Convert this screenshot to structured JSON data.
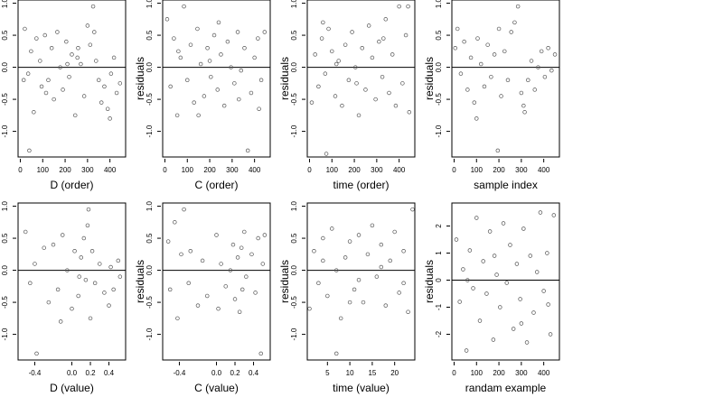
{
  "chart_data": [
    {
      "type": "scatter",
      "xlabel": "D (order)",
      "ylabel": "residuals",
      "xlim": [
        -10,
        470
      ],
      "ylim": [
        -1.4,
        1.05
      ],
      "xticks": [
        0,
        100,
        200,
        300,
        400
      ],
      "xtick_labels": [
        "0",
        "100",
        "200",
        "300",
        "400"
      ],
      "yticks": [
        -1.0,
        -0.5,
        0.0,
        0.5,
        1.0
      ],
      "ytick_labels": [
        "-1.0",
        "-0.5",
        "0.0",
        "0.5",
        "1.0"
      ],
      "hline": 0,
      "grid": false,
      "points": [
        [
          20,
          0.6
        ],
        [
          35,
          -0.1
        ],
        [
          48,
          0.25
        ],
        [
          60,
          -0.7
        ],
        [
          72,
          0.45
        ],
        [
          88,
          0.1
        ],
        [
          95,
          -0.3
        ],
        [
          110,
          0.5
        ],
        [
          125,
          -0.2
        ],
        [
          140,
          0.3
        ],
        [
          150,
          -0.5
        ],
        [
          165,
          0.55
        ],
        [
          178,
          0.0
        ],
        [
          190,
          -0.35
        ],
        [
          205,
          0.4
        ],
        [
          218,
          -0.15
        ],
        [
          230,
          0.2
        ],
        [
          245,
          -0.75
        ],
        [
          258,
          0.3
        ],
        [
          270,
          0.05
        ],
        [
          285,
          -0.45
        ],
        [
          300,
          0.65
        ],
        [
          312,
          0.35
        ],
        [
          325,
          0.95
        ],
        [
          338,
          0.1
        ],
        [
          350,
          -0.2
        ],
        [
          362,
          -0.55
        ],
        [
          375,
          -0.3
        ],
        [
          390,
          -0.65
        ],
        [
          405,
          -0.1
        ],
        [
          418,
          0.15
        ],
        [
          430,
          -0.4
        ],
        [
          445,
          -0.25
        ],
        [
          40,
          -1.3
        ],
        [
          15,
          -0.2
        ],
        [
          115,
          -0.4
        ],
        [
          210,
          0.05
        ],
        [
          330,
          0.55
        ],
        [
          400,
          -0.8
        ],
        [
          255,
          0.15
        ]
      ]
    },
    {
      "type": "scatter",
      "xlabel": "C (order)",
      "ylabel": "residuals",
      "xlim": [
        -10,
        470
      ],
      "ylim": [
        -1.4,
        1.05
      ],
      "xticks": [
        0,
        100,
        200,
        300,
        400
      ],
      "xtick_labels": [
        "0",
        "100",
        "200",
        "300",
        "400"
      ],
      "yticks": [
        -1.0,
        -0.5,
        0.0,
        0.5,
        1.0
      ],
      "ytick_labels": [
        "-1.0",
        "-0.5",
        "0.0",
        "0.5",
        "1.0"
      ],
      "hline": 0,
      "grid": false,
      "points": [
        [
          10,
          0.75
        ],
        [
          25,
          -0.3
        ],
        [
          40,
          0.45
        ],
        [
          55,
          -0.75
        ],
        [
          70,
          0.15
        ],
        [
          85,
          0.95
        ],
        [
          100,
          -0.2
        ],
        [
          115,
          0.35
        ],
        [
          130,
          -0.55
        ],
        [
          145,
          0.6
        ],
        [
          160,
          0.05
        ],
        [
          175,
          -0.45
        ],
        [
          190,
          0.3
        ],
        [
          205,
          -0.15
        ],
        [
          220,
          0.5
        ],
        [
          235,
          -0.35
        ],
        [
          250,
          0.2
        ],
        [
          265,
          -0.6
        ],
        [
          280,
          0.4
        ],
        [
          295,
          0.0
        ],
        [
          310,
          -0.25
        ],
        [
          325,
          0.55
        ],
        [
          340,
          -0.05
        ],
        [
          355,
          0.3
        ],
        [
          370,
          -1.3
        ],
        [
          385,
          -0.4
        ],
        [
          400,
          0.15
        ],
        [
          415,
          0.45
        ],
        [
          430,
          -0.2
        ],
        [
          445,
          0.55
        ],
        [
          60,
          0.25
        ],
        [
          150,
          -0.75
        ],
        [
          240,
          0.7
        ],
        [
          330,
          -0.5
        ],
        [
          420,
          -0.65
        ],
        [
          200,
          0.1
        ]
      ]
    },
    {
      "type": "scatter",
      "xlabel": "time (order)",
      "ylabel": "residuals",
      "xlim": [
        -10,
        470
      ],
      "ylim": [
        -1.4,
        1.05
      ],
      "xticks": [
        0,
        100,
        200,
        300,
        400
      ],
      "xtick_labels": [
        "0",
        "100",
        "200",
        "300",
        "400"
      ],
      "yticks": [
        -1.0,
        -0.5,
        0.0,
        0.5,
        1.0
      ],
      "ytick_labels": [
        "-1.0",
        "-0.5",
        "0.0",
        "0.5",
        "1.0"
      ],
      "hline": 0,
      "grid": false,
      "points": [
        [
          10,
          -0.55
        ],
        [
          25,
          0.2
        ],
        [
          40,
          -0.3
        ],
        [
          55,
          0.45
        ],
        [
          70,
          -0.1
        ],
        [
          85,
          0.6
        ],
        [
          100,
          0.25
        ],
        [
          115,
          -0.45
        ],
        [
          130,
          0.1
        ],
        [
          145,
          -0.6
        ],
        [
          160,
          0.35
        ],
        [
          175,
          -0.2
        ],
        [
          190,
          0.55
        ],
        [
          205,
          0.0
        ],
        [
          220,
          -0.75
        ],
        [
          235,
          0.3
        ],
        [
          250,
          -0.35
        ],
        [
          265,
          0.65
        ],
        [
          280,
          0.15
        ],
        [
          295,
          -0.5
        ],
        [
          310,
          0.4
        ],
        [
          325,
          -0.15
        ],
        [
          340,
          0.75
        ],
        [
          355,
          -0.4
        ],
        [
          370,
          0.2
        ],
        [
          385,
          -0.6
        ],
        [
          400,
          0.95
        ],
        [
          415,
          -0.25
        ],
        [
          430,
          0.5
        ],
        [
          445,
          -0.7
        ],
        [
          75,
          -1.35
        ],
        [
          60,
          0.7
        ],
        [
          210,
          -0.25
        ],
        [
          330,
          0.45
        ],
        [
          440,
          0.95
        ],
        [
          120,
          0.05
        ]
      ]
    },
    {
      "type": "scatter",
      "xlabel": "sample index",
      "ylabel": "residuals",
      "xlim": [
        -10,
        470
      ],
      "ylim": [
        -1.4,
        1.05
      ],
      "xticks": [
        0,
        100,
        200,
        300,
        400
      ],
      "xtick_labels": [
        "0",
        "100",
        "200",
        "300",
        "400"
      ],
      "yticks": [
        -1.0,
        -0.5,
        0.0,
        0.5,
        1.0
      ],
      "ytick_labels": [
        "-1.0",
        "-0.5",
        "0.0",
        "0.5",
        "1.0"
      ],
      "hline": 0,
      "grid": false,
      "points": [
        [
          5,
          0.3
        ],
        [
          15,
          0.6
        ],
        [
          30,
          -0.1
        ],
        [
          45,
          0.4
        ],
        [
          60,
          -0.35
        ],
        [
          75,
          0.15
        ],
        [
          90,
          -0.55
        ],
        [
          105,
          0.45
        ],
        [
          120,
          0.05
        ],
        [
          135,
          -0.3
        ],
        [
          150,
          0.35
        ],
        [
          165,
          -0.15
        ],
        [
          180,
          0.2
        ],
        [
          195,
          -1.3
        ],
        [
          210,
          -0.45
        ],
        [
          225,
          0.25
        ],
        [
          240,
          -0.2
        ],
        [
          255,
          0.55
        ],
        [
          270,
          0.7
        ],
        [
          285,
          0.95
        ],
        [
          300,
          -0.4
        ],
        [
          315,
          -0.7
        ],
        [
          330,
          -0.2
        ],
        [
          345,
          0.1
        ],
        [
          360,
          -0.35
        ],
        [
          375,
          0.0
        ],
        [
          390,
          0.25
        ],
        [
          405,
          -0.15
        ],
        [
          420,
          0.3
        ],
        [
          435,
          -0.05
        ],
        [
          450,
          0.2
        ],
        [
          100,
          -0.8
        ],
        [
          200,
          0.6
        ],
        [
          310,
          -0.6
        ]
      ]
    },
    {
      "type": "scatter",
      "xlabel": "D (value)",
      "ylabel": "residuals",
      "xlim": [
        -0.58,
        0.58
      ],
      "ylim": [
        -1.4,
        1.05
      ],
      "xticks": [
        -0.4,
        0.0,
        0.2,
        0.4
      ],
      "xtick_labels": [
        "-0.4",
        "0.0",
        "0.2",
        "0.4"
      ],
      "yticks": [
        -1.0,
        -0.5,
        0.0,
        0.5,
        1.0
      ],
      "ytick_labels": [
        "-1.0",
        "-0.5",
        "0.0",
        "0.5",
        "1.0"
      ],
      "hline": 0,
      "grid": false,
      "points": [
        [
          -0.5,
          0.6
        ],
        [
          -0.45,
          -0.2
        ],
        [
          -0.4,
          0.1
        ],
        [
          -0.38,
          -1.3
        ],
        [
          -0.3,
          0.35
        ],
        [
          -0.25,
          -0.5
        ],
        [
          -0.2,
          0.4
        ],
        [
          -0.15,
          -0.3
        ],
        [
          -0.1,
          0.55
        ],
        [
          -0.05,
          0.0
        ],
        [
          0.0,
          -0.6
        ],
        [
          0.03,
          0.3
        ],
        [
          0.07,
          -0.4
        ],
        [
          0.1,
          0.2
        ],
        [
          0.13,
          0.5
        ],
        [
          0.15,
          -0.15
        ],
        [
          0.17,
          0.7
        ],
        [
          0.18,
          0.95
        ],
        [
          0.2,
          -0.75
        ],
        [
          0.22,
          0.3
        ],
        [
          0.25,
          -0.2
        ],
        [
          0.3,
          0.1
        ],
        [
          0.35,
          -0.35
        ],
        [
          0.4,
          -0.55
        ],
        [
          0.42,
          0.05
        ],
        [
          0.45,
          -0.3
        ],
        [
          0.5,
          0.15
        ],
        [
          0.52,
          -0.1
        ],
        [
          -0.12,
          -0.8
        ],
        [
          0.08,
          -0.1
        ]
      ]
    },
    {
      "type": "scatter",
      "xlabel": "C (value)",
      "ylabel": "residuals",
      "xlim": [
        -0.58,
        0.58
      ],
      "ylim": [
        -1.4,
        1.05
      ],
      "xticks": [
        -0.4,
        0.0,
        0.2,
        0.4
      ],
      "xtick_labels": [
        "-0.4",
        "0.0",
        "0.2",
        "0.4"
      ],
      "yticks": [
        -1.0,
        -0.5,
        0.0,
        0.5,
        1.0
      ],
      "ytick_labels": [
        "-1.0",
        "-0.5",
        "0.0",
        "0.5",
        "1.0"
      ],
      "hline": 0,
      "grid": false,
      "points": [
        [
          -0.52,
          0.45
        ],
        [
          -0.5,
          -0.3
        ],
        [
          -0.45,
          0.75
        ],
        [
          -0.42,
          -0.75
        ],
        [
          -0.35,
          0.95
        ],
        [
          -0.3,
          -0.2
        ],
        [
          -0.28,
          0.3
        ],
        [
          -0.2,
          -0.55
        ],
        [
          -0.15,
          0.15
        ],
        [
          -0.1,
          -0.4
        ],
        [
          0.0,
          0.55
        ],
        [
          0.02,
          -0.6
        ],
        [
          0.05,
          0.1
        ],
        [
          0.1,
          -0.25
        ],
        [
          0.18,
          0.4
        ],
        [
          0.2,
          -0.45
        ],
        [
          0.23,
          0.2
        ],
        [
          0.25,
          -0.65
        ],
        [
          0.27,
          0.35
        ],
        [
          0.3,
          0.6
        ],
        [
          0.32,
          -0.1
        ],
        [
          0.38,
          0.25
        ],
        [
          0.42,
          -0.35
        ],
        [
          0.45,
          0.5
        ],
        [
          0.48,
          -1.3
        ],
        [
          0.5,
          0.1
        ],
        [
          0.52,
          0.55
        ],
        [
          -0.38,
          0.25
        ],
        [
          0.15,
          0.0
        ],
        [
          0.28,
          -0.3
        ]
      ]
    },
    {
      "type": "scatter",
      "xlabel": "time (value)",
      "ylabel": "residuals",
      "xlim": [
        0.5,
        24.5
      ],
      "ylim": [
        -1.4,
        1.05
      ],
      "xticks": [
        5,
        10,
        15,
        20
      ],
      "xtick_labels": [
        "5",
        "10",
        "15",
        "20"
      ],
      "yticks": [
        -1.0,
        -0.5,
        0.0,
        0.5,
        1.0
      ],
      "ytick_labels": [
        "-1.0",
        "-0.5",
        "0.0",
        "0.5",
        "1.0"
      ],
      "hline": 0,
      "grid": false,
      "points": [
        [
          1,
          -0.6
        ],
        [
          2,
          0.3
        ],
        [
          3,
          -0.2
        ],
        [
          4,
          0.5
        ],
        [
          5,
          -0.4
        ],
        [
          6,
          0.65
        ],
        [
          7,
          0.0
        ],
        [
          8,
          -0.75
        ],
        [
          9,
          0.2
        ],
        [
          10,
          0.45
        ],
        [
          11,
          -0.3
        ],
        [
          12,
          0.55
        ],
        [
          13,
          -0.5
        ],
        [
          14,
          0.25
        ],
        [
          15,
          0.7
        ],
        [
          16,
          -0.1
        ],
        [
          17,
          0.4
        ],
        [
          18,
          -0.55
        ],
        [
          19,
          0.15
        ],
        [
          20,
          0.6
        ],
        [
          21,
          -0.35
        ],
        [
          22,
          0.3
        ],
        [
          23,
          -0.65
        ],
        [
          24,
          0.95
        ],
        [
          7,
          -1.3
        ],
        [
          12,
          -0.15
        ],
        [
          17,
          0.05
        ],
        [
          22,
          -0.2
        ],
        [
          4,
          0.15
        ],
        [
          10,
          -0.5
        ]
      ]
    },
    {
      "type": "scatter",
      "xlabel": "randam example",
      "ylabel": "residuals",
      "xlim": [
        -10,
        470
      ],
      "ylim": [
        -2.95,
        2.85
      ],
      "xticks": [
        0,
        100,
        200,
        300,
        400
      ],
      "xtick_labels": [
        "0",
        "100",
        "200",
        "300",
        "400"
      ],
      "yticks": [
        -2,
        -1,
        0,
        1,
        2
      ],
      "ytick_labels": [
        "-2",
        "-1",
        "0",
        "1",
        "2"
      ],
      "hline": 0,
      "grid": false,
      "points": [
        [
          10,
          1.5
        ],
        [
          25,
          -0.8
        ],
        [
          40,
          0.4
        ],
        [
          55,
          -2.6
        ],
        [
          70,
          1.1
        ],
        [
          85,
          -0.3
        ],
        [
          100,
          2.3
        ],
        [
          115,
          -1.5
        ],
        [
          130,
          0.7
        ],
        [
          145,
          -0.5
        ],
        [
          160,
          1.8
        ],
        [
          175,
          -2.2
        ],
        [
          190,
          0.2
        ],
        [
          205,
          -1.0
        ],
        [
          220,
          2.1
        ],
        [
          235,
          -0.1
        ],
        [
          250,
          1.3
        ],
        [
          265,
          -1.8
        ],
        [
          280,
          0.6
        ],
        [
          295,
          -0.7
        ],
        [
          310,
          1.9
        ],
        [
          325,
          -2.3
        ],
        [
          340,
          0.9
        ],
        [
          355,
          -1.2
        ],
        [
          370,
          0.3
        ],
        [
          385,
          2.5
        ],
        [
          400,
          -0.4
        ],
        [
          415,
          1.0
        ],
        [
          430,
          -2.0
        ],
        [
          445,
          2.4
        ],
        [
          60,
          0.0
        ],
        [
          180,
          0.9
        ],
        [
          300,
          -1.6
        ],
        [
          420,
          -0.9
        ]
      ]
    }
  ]
}
